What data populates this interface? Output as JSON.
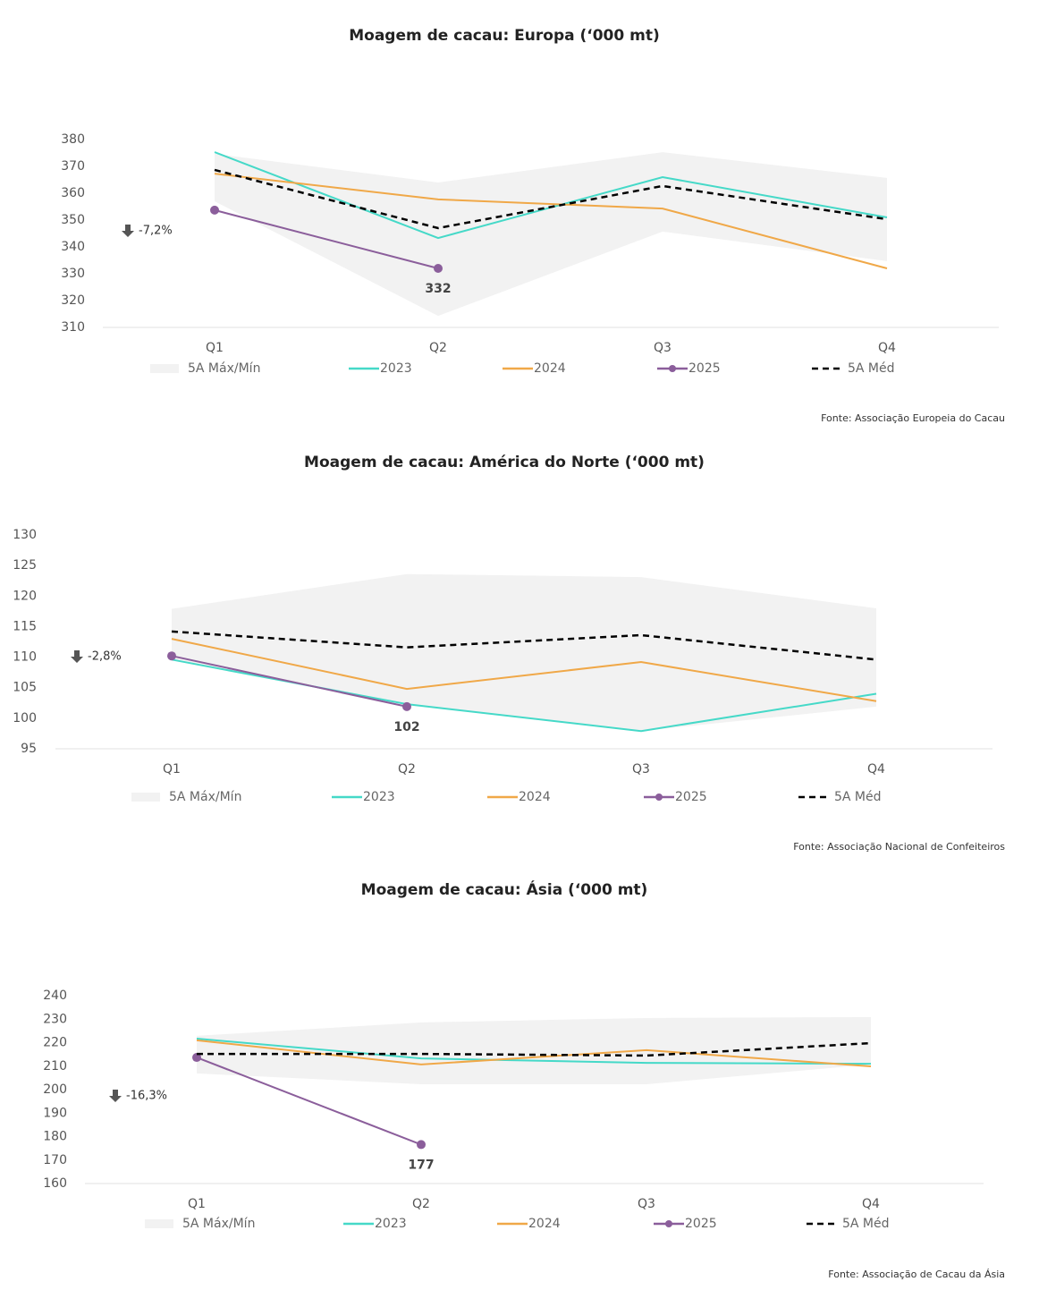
{
  "chart_data": [
    {
      "type": "line",
      "title": "Moagem de cacau: Europa (‘000 mt)",
      "source": "Fonte: Associação Europeia do Cacau",
      "categories": [
        "Q1",
        "Q2",
        "Q3",
        "Q4"
      ],
      "ylim": [
        310,
        380
      ],
      "yticks": [
        310,
        320,
        330,
        340,
        350,
        360,
        370,
        380
      ],
      "annotation": "-7,2%",
      "band": {
        "name": "5A Máx/Mín",
        "color": "#f2f2f2",
        "max": [
          374.7,
          364,
          375.3,
          365.7
        ],
        "min": [
          357,
          314.3,
          345.7,
          334.7
        ]
      },
      "series": [
        {
          "name": "2023",
          "color": "#45d9c8",
          "values": [
            375.3,
            343.3,
            366,
            351
          ]
        },
        {
          "name": "2024",
          "color": "#f0a848",
          "values": [
            367.3,
            357.7,
            354.3,
            332
          ]
        },
        {
          "name": "2025",
          "color": "#8b5e9b",
          "markers": true,
          "values": [
            353.7,
            332,
            null,
            null
          ],
          "value_labels": [
            null,
            "332",
            null,
            null
          ]
        },
        {
          "name": "5A Méd",
          "color": "#000000",
          "dashed": true,
          "values": [
            368.7,
            347,
            362.7,
            350.3
          ]
        }
      ]
    },
    {
      "type": "line",
      "title": "Moagem de cacau: América do Norte (‘000 mt)",
      "source": "Fonte: Associação Nacional de Confeiteiros",
      "categories": [
        "Q1",
        "Q2",
        "Q3",
        "Q4"
      ],
      "ylim": [
        95,
        130
      ],
      "yticks": [
        95,
        100,
        105,
        110,
        115,
        120,
        125,
        130
      ],
      "annotation": "-2,8%",
      "band": {
        "name": "5A Máx/Mín",
        "color": "#f2f2f2",
        "max": [
          117.9,
          123.6,
          123.1,
          118
        ],
        "min": [
          109.5,
          102.3,
          97.9,
          101.9
        ]
      },
      "series": [
        {
          "name": "2023",
          "color": "#45d9c8",
          "values": [
            109.6,
            102.3,
            97.9,
            104
          ]
        },
        {
          "name": "2024",
          "color": "#f0a848",
          "values": [
            113,
            104.8,
            109.2,
            102.8
          ]
        },
        {
          "name": "2025",
          "color": "#8b5e9b",
          "markers": true,
          "values": [
            110.2,
            101.9,
            null,
            null
          ],
          "value_labels": [
            null,
            "102",
            null,
            null
          ]
        },
        {
          "name": "5A Méd",
          "color": "#000000",
          "dashed": true,
          "values": [
            114.2,
            111.6,
            113.6,
            109.6
          ]
        }
      ]
    },
    {
      "type": "line",
      "title": "Moagem de cacau: Ásia (‘000 mt)",
      "source": "Fonte: Associação de Cacau da Ásia",
      "categories": [
        "Q1",
        "Q2",
        "Q3",
        "Q4"
      ],
      "ylim": [
        160,
        240
      ],
      "yticks": [
        160,
        170,
        180,
        190,
        200,
        210,
        220,
        230,
        240
      ],
      "annotation": "-16,3%",
      "band": {
        "name": "5A Máx/Mín",
        "color": "#f2f2f2",
        "max": [
          222.9,
          228.6,
          230.5,
          230.9
        ],
        "min": [
          206.9,
          202.3,
          202.3,
          210.7
        ]
      },
      "series": [
        {
          "name": "2023",
          "color": "#45d9c8",
          "values": [
            221.7,
            213.3,
            211.4,
            211
          ]
        },
        {
          "name": "2024",
          "color": "#f0a848",
          "values": [
            221,
            210.7,
            216.8,
            209.9
          ]
        },
        {
          "name": "2025",
          "color": "#8b5e9b",
          "markers": true,
          "values": [
            213.7,
            176.6,
            null,
            null
          ],
          "value_labels": [
            null,
            "177",
            null,
            null
          ]
        },
        {
          "name": "5A Méd",
          "color": "#000000",
          "dashed": true,
          "values": [
            215.2,
            215.2,
            214.5,
            219.8
          ]
        }
      ]
    }
  ]
}
